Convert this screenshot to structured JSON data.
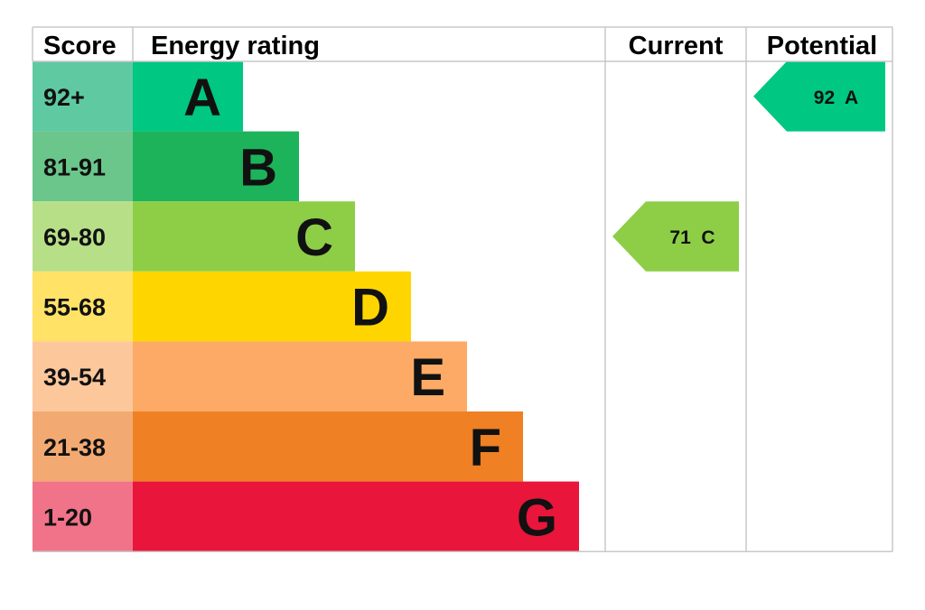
{
  "chart_data": {
    "type": "bar",
    "headers": {
      "score": "Score",
      "rating": "Energy rating",
      "current": "Current",
      "potential": "Potential"
    },
    "bands": [
      {
        "letter": "A",
        "score": "92+",
        "min": 92,
        "max": 100,
        "bar_color": "#00c781",
        "score_color": "#5fc9a1"
      },
      {
        "letter": "B",
        "score": "81-91",
        "min": 81,
        "max": 91,
        "bar_color": "#1db35a",
        "score_color": "#6ac68a"
      },
      {
        "letter": "C",
        "score": "69-80",
        "min": 69,
        "max": 80,
        "bar_color": "#8dce46",
        "score_color": "#b7df88"
      },
      {
        "letter": "D",
        "score": "55-68",
        "min": 55,
        "max": 68,
        "bar_color": "#ffd500",
        "score_color": "#ffe266"
      },
      {
        "letter": "E",
        "score": "39-54",
        "min": 39,
        "max": 54,
        "bar_color": "#fcaa65",
        "score_color": "#fdc79c"
      },
      {
        "letter": "F",
        "score": "21-38",
        "min": 21,
        "max": 38,
        "bar_color": "#ef8023",
        "score_color": "#f2aa72"
      },
      {
        "letter": "G",
        "score": "1-20",
        "min": 1,
        "max": 20,
        "bar_color": "#e9153b",
        "score_color": "#f17389"
      }
    ],
    "current": {
      "value": 71,
      "band": "C",
      "label": "71  C",
      "color": "#8dce46"
    },
    "potential": {
      "value": 92,
      "band": "A",
      "label": "92  A",
      "color": "#00c781"
    },
    "border_color": "#c8c8c8"
  }
}
